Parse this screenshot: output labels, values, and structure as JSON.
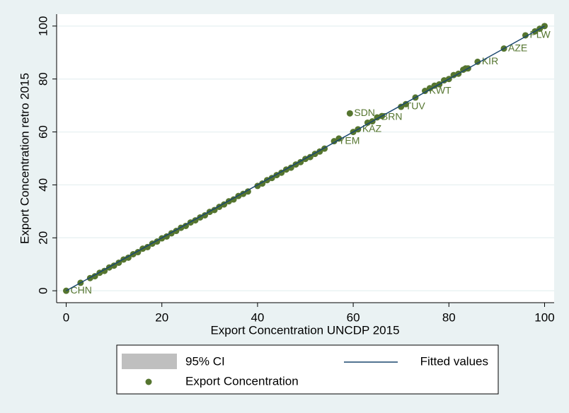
{
  "chart_data": {
    "type": "scatter",
    "x_label": "Export Concentration UNCDP 2015",
    "y_label": "Export Concentration retro 2015",
    "xlim": [
      -2,
      102
    ],
    "ylim": [
      -4.5,
      104.5
    ],
    "xticks": [
      0,
      20,
      40,
      60,
      80,
      100
    ],
    "yticks": [
      0,
      20,
      40,
      60,
      80,
      100
    ],
    "grid": true,
    "series": [
      {
        "name": "95% CI",
        "color": "#bfbfbf"
      },
      {
        "name": "Fitted values",
        "color": "#1a476f",
        "x": [
          0,
          100
        ],
        "values": [
          0,
          100
        ]
      },
      {
        "name": "Export Concentration",
        "color": "#55752f",
        "x": [
          0,
          3,
          5,
          6,
          7,
          8,
          9,
          10,
          11,
          12,
          13,
          14,
          15,
          16,
          17,
          18,
          19,
          20,
          21,
          22,
          23,
          24,
          25,
          26,
          27,
          28,
          29,
          30,
          31,
          32,
          33,
          34,
          35,
          36,
          37,
          38,
          40,
          41,
          42,
          43,
          44,
          45,
          46,
          47,
          48,
          49,
          50,
          51,
          52,
          53,
          54,
          56,
          57,
          59.3,
          60,
          61,
          63,
          64,
          65,
          66,
          70,
          71,
          73,
          75,
          76,
          77,
          78,
          79,
          80,
          81,
          82,
          83,
          83.5,
          84,
          86,
          91.5,
          96,
          98,
          99,
          100
        ],
        "values": [
          0,
          3,
          4.8,
          5.5,
          6.8,
          7.5,
          8.8,
          9.5,
          10.6,
          11.8,
          12.5,
          13.8,
          14.6,
          15.9,
          16.5,
          17.8,
          18.6,
          19.8,
          20.5,
          21.7,
          22.6,
          23.8,
          24.5,
          25.8,
          26.6,
          27.7,
          28.5,
          29.8,
          30.5,
          31.7,
          32.6,
          33.8,
          34.5,
          35.8,
          36.6,
          37.5,
          39.6,
          40.5,
          41.8,
          42.6,
          43.7,
          44.6,
          45.8,
          46.5,
          47.7,
          48.6,
          49.8,
          50.5,
          51.7,
          52.6,
          53.7,
          56.5,
          57.5,
          67,
          60,
          61,
          63.5,
          64,
          65.5,
          66,
          69.5,
          70.5,
          73,
          75.5,
          76.5,
          77.5,
          78,
          79.5,
          80,
          81.5,
          82,
          83.5,
          84,
          84,
          86.5,
          91.5,
          96.5,
          98,
          99,
          100
        ],
        "labels": [
          "CHN",
          null,
          null,
          null,
          null,
          null,
          null,
          null,
          null,
          null,
          null,
          null,
          null,
          null,
          null,
          null,
          null,
          null,
          null,
          null,
          null,
          null,
          null,
          null,
          null,
          null,
          null,
          null,
          null,
          null,
          null,
          null,
          null,
          null,
          null,
          null,
          null,
          null,
          null,
          null,
          null,
          null,
          null,
          null,
          null,
          null,
          null,
          null,
          null,
          null,
          null,
          "YEM",
          null,
          "SDN",
          null,
          "KAZ",
          null,
          null,
          "BRN",
          null,
          "TUV",
          null,
          null,
          "KWT",
          null,
          null,
          null,
          null,
          null,
          null,
          null,
          null,
          null,
          null,
          "KIR",
          "AZE",
          "PLW",
          null,
          null,
          null
        ]
      }
    ],
    "legend": "bottom"
  }
}
